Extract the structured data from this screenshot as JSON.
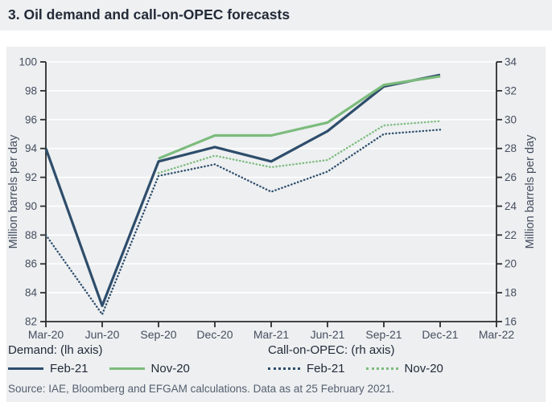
{
  "title": "3. Oil demand and call-on-OPEC forecasts",
  "colors": {
    "navy": "#2e4d6b",
    "green": "#7cbb7c",
    "grid": "#ffffff",
    "axis": "#2d2d2d",
    "panel_bg": "#edeff1",
    "title_bg": "#eff0f2",
    "tick_text": "#454e5e"
  },
  "chart_data": {
    "type": "line",
    "categories": [
      "Mar-20",
      "Jun-20",
      "Sep-20",
      "Dec-20",
      "Mar-21",
      "Jun-21",
      "Sep-21",
      "Dec-21",
      "Mar-22"
    ],
    "left_axis": {
      "label": "Million barrels per day",
      "min": 82,
      "max": 100,
      "step": 2
    },
    "right_axis": {
      "label": "Million barrels per day",
      "min": 16,
      "max": 34,
      "step": 2
    },
    "grid": true,
    "legend_position": "bottom",
    "series": [
      {
        "name": "Demand Feb-21",
        "axis": "left",
        "style": "solid",
        "color": "navy",
        "values": [
          94.0,
          83.1,
          93.1,
          94.1,
          93.1,
          95.2,
          98.3,
          99.1,
          null
        ]
      },
      {
        "name": "Demand Nov-20",
        "axis": "left",
        "style": "solid",
        "color": "green",
        "values": [
          null,
          null,
          93.3,
          94.9,
          94.9,
          95.8,
          98.4,
          99.0,
          null
        ]
      },
      {
        "name": "Call-on-OPEC Feb-21",
        "axis": "right",
        "style": "dotted",
        "color": "navy",
        "values": [
          22.0,
          16.5,
          26.1,
          26.9,
          25.0,
          26.4,
          29.0,
          29.3,
          null
        ]
      },
      {
        "name": "Call-on-OPEC Nov-20",
        "axis": "right",
        "style": "dotted",
        "color": "green",
        "values": [
          null,
          null,
          26.3,
          27.5,
          26.7,
          27.2,
          29.6,
          29.9,
          null
        ]
      }
    ]
  },
  "legend": {
    "demand": {
      "header": "Demand: (lh axis)",
      "items": [
        {
          "label": "Feb-21"
        },
        {
          "label": "Nov-20"
        }
      ]
    },
    "call_on_opec": {
      "header": "Call-on-OPEC: (rh axis)",
      "items": [
        {
          "label": "Feb-21"
        },
        {
          "label": "Nov-20"
        }
      ]
    }
  },
  "source": "Source: IAE, Bloomberg and EFGAM calculations. Data as at 25 February 2021."
}
